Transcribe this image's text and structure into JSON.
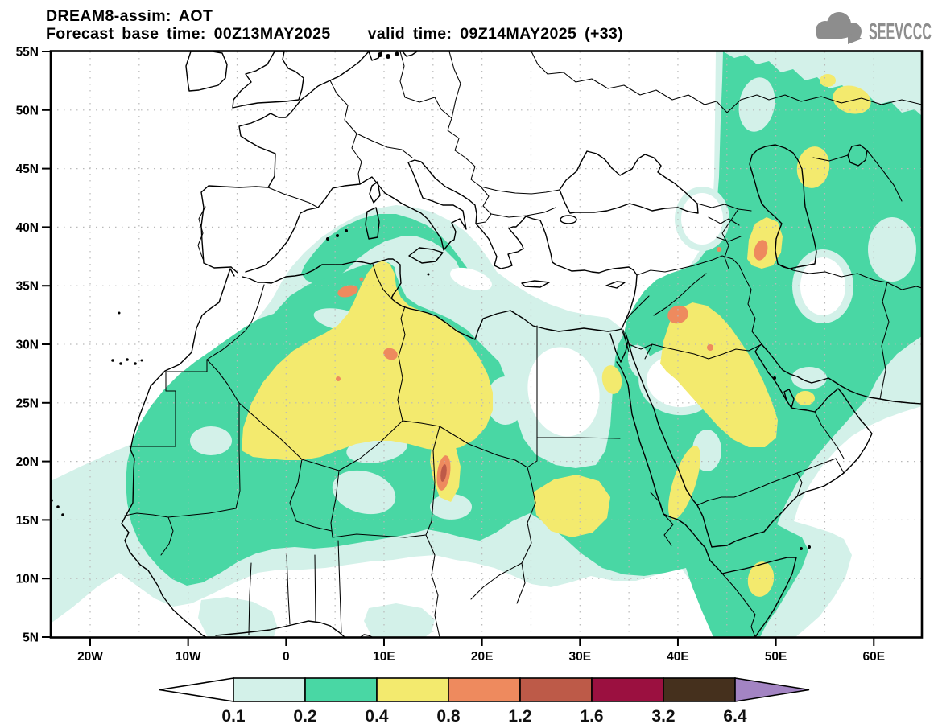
{
  "header": {
    "title": "DREAM8-assim: AOT",
    "base_time_label": "Forecast base time: 00Z13MAY2025",
    "valid_time_label": "valid time: 09Z14MAY2025 (+33)"
  },
  "logo": {
    "brand": "SEEVCCC"
  },
  "map": {
    "lat_ticks": [
      "55N",
      "50N",
      "45N",
      "40N",
      "35N",
      "30N",
      "25N",
      "20N",
      "15N",
      "10N",
      "5N"
    ],
    "lon_ticks": [
      "20W",
      "10W",
      "0",
      "10E",
      "20E",
      "30E",
      "40E",
      "50E",
      "60E"
    ]
  },
  "colorbar": {
    "levels": [
      "0.1",
      "0.2",
      "0.4",
      "0.8",
      "1.2",
      "1.6",
      "3.2",
      "6.4"
    ],
    "colors": {
      "below_0_1": "#ffffff",
      "c0_1": "#d3f1e9",
      "c0_2": "#49d7a4",
      "c0_4": "#f3ea6e",
      "c0_8": "#ee8a5e",
      "c1_2": "#bd5a48",
      "c1_6": "#9b1040",
      "c3_2": "#45301d",
      "above_6_4": "#a384c3"
    }
  },
  "chart_data": {
    "type": "heatmap",
    "title": "Aerosol Optical Thickness (AOT) filled-contour forecast field",
    "lon_range_deg": [
      -24,
      65
    ],
    "lat_range_deg": [
      5,
      55
    ],
    "contour_levels": [
      0.1,
      0.2,
      0.4,
      0.8,
      1.2,
      1.6,
      3.2,
      6.4
    ],
    "features": [
      {
        "region": "Central Sahara plume (Algeria-Tunisia-Libya)",
        "aot": "0.4-0.8",
        "peaks": "0.8-1.2 spots near Tunisia-Algeria border and SW Libya"
      },
      {
        "region": "Mediterranean arc over Balearics-Sardinia-Sicily",
        "aot": "0.2-0.4 with 0.1-0.2 fringe"
      },
      {
        "region": "Sahel band Senegal-Mali-Niger-Chad-Sudan",
        "aot": "0.2-0.4"
      },
      {
        "region": "Chad (Bodele) streak",
        "aot": "0.8-1.2 with 1.2-1.6 core"
      },
      {
        "region": "Sudan patch",
        "aot": "0.4-0.8"
      },
      {
        "region": "Syria-Iraq-Persian Gulf plume",
        "aot": "0.4-0.8",
        "peaks": "0.8-1.2 spots over Syria/Jordan and south Iraq"
      },
      {
        "region": "Caucasus / west Caspian",
        "aot": "0.4-0.8 with 0.8-1.2 streak"
      },
      {
        "region": "Central Asia east of Caspian",
        "aot": "0.2-0.4 with 0.4-0.8 patches"
      },
      {
        "region": "Arabian Peninsula and Red Sea",
        "aot": "0.2-0.4 with 0.4-0.8 coastal strips"
      },
      {
        "region": "Horn of Africa / Somalia",
        "aot": "0.2-0.4 with 0.4-0.8 patch"
      },
      {
        "region": "West African Atlantic outflow",
        "aot": "0.1-0.2"
      },
      {
        "region": "White gaps (AOT < 0.1)",
        "aot": "NE Libya-NW Egypt, north-central Saudi Arabia, Armenia, SE of Caspian, Europe"
      }
    ]
  }
}
